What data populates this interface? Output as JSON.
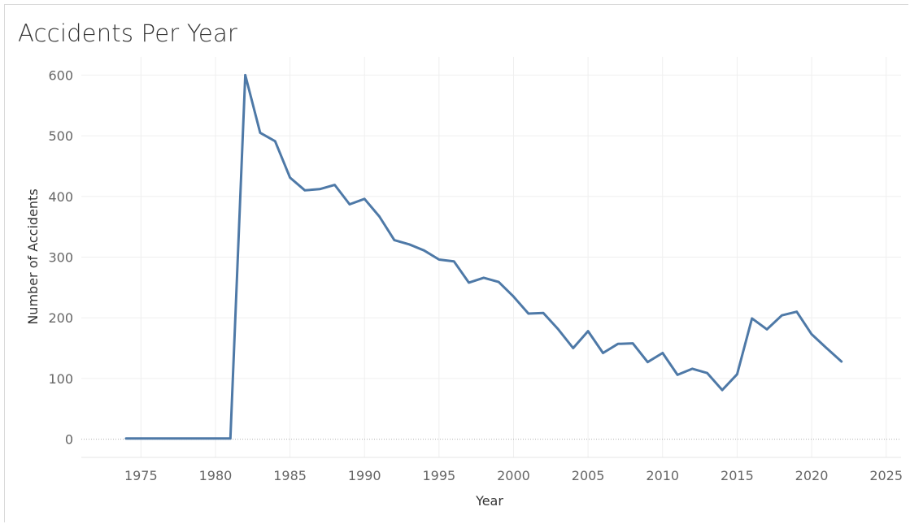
{
  "chart_data": {
    "type": "line",
    "title": "Accidents Per Year",
    "xlabel": "Year",
    "ylabel": "Number of Accidents",
    "xlim": [
      1971,
      2026
    ],
    "ylim": [
      -30,
      630
    ],
    "x_ticks": [
      1975,
      1980,
      1985,
      1990,
      1995,
      2000,
      2005,
      2010,
      2015,
      2020,
      2025
    ],
    "y_ticks": [
      0,
      100,
      200,
      300,
      400,
      500,
      600
    ],
    "grid": true,
    "line_color": "#4e79a7",
    "series": [
      {
        "x": [
          1974,
          1975,
          1976,
          1977,
          1978,
          1979,
          1980,
          1981,
          1982,
          1983,
          1984,
          1985,
          1986,
          1987,
          1988,
          1989,
          1990,
          1991,
          1992,
          1993,
          1994,
          1995,
          1996,
          1997,
          1998,
          1999,
          2000,
          2001,
          2002,
          2003,
          2004,
          2005,
          2006,
          2007,
          2008,
          2009,
          2010,
          2011,
          2012,
          2013,
          2014,
          2015,
          2016,
          2017,
          2018,
          2019,
          2020,
          2021,
          2022
        ],
        "values": [
          1,
          1,
          1,
          1,
          1,
          1,
          1,
          1,
          600,
          505,
          491,
          431,
          410,
          412,
          419,
          387,
          396,
          367,
          328,
          321,
          311,
          296,
          293,
          258,
          266,
          259,
          235,
          207,
          208,
          181,
          150,
          178,
          142,
          157,
          158,
          127,
          142,
          106,
          116,
          109,
          81,
          107,
          199,
          181,
          204,
          210,
          173,
          150,
          128
        ]
      }
    ]
  }
}
